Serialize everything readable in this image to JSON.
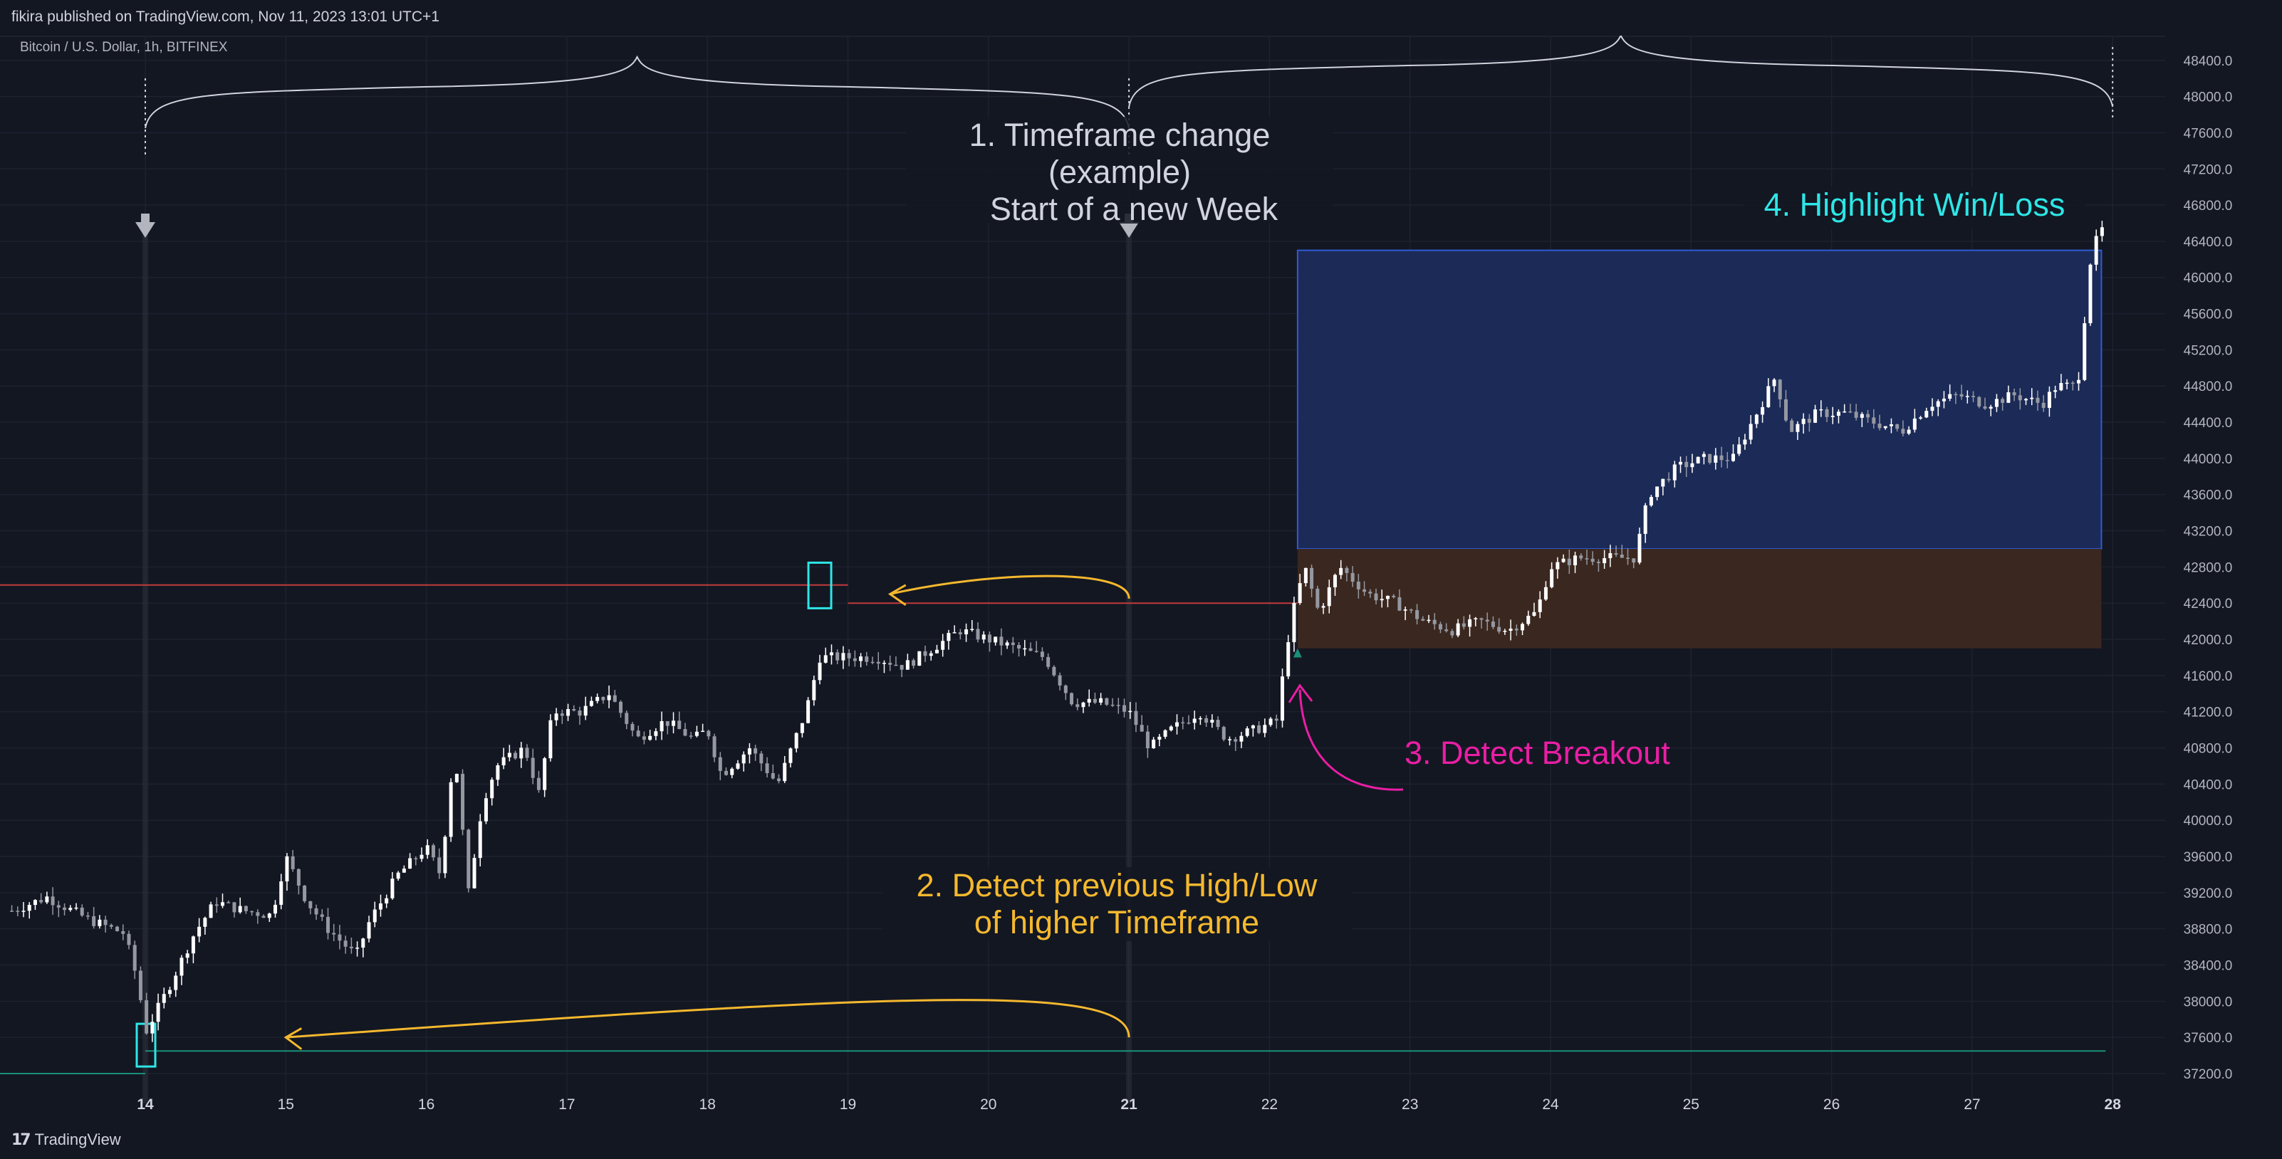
{
  "header": {
    "published": "fikira published on TradingView.com, Nov 11, 2023 13:01 UTC+1",
    "symbol": "Bitcoin / U.S. Dollar, 1h, BITFINEX"
  },
  "footer": {
    "brand_mark": "17",
    "brand": "TradingView"
  },
  "colors": {
    "background": "#131722",
    "grid": "#1e2230",
    "candle_up": "#ffffff",
    "candle_down": "#9598a1",
    "annotation_white": "#d1d4dc",
    "annotation_yellow": "#f5b82e",
    "annotation_magenta": "#e91ea4",
    "annotation_cyan": "#2ee6e6",
    "resistance_line": "#c23b3b",
    "support_line": "#1a8f7a",
    "win_box": "#1b2a56",
    "loss_box": "#3a271f"
  },
  "chart_data": {
    "type": "candlestick",
    "title": "",
    "xlabel": "",
    "ylabel": "",
    "ylim": [
      36800,
      48800
    ],
    "y_ticks": [
      37200,
      37600,
      38000,
      38400,
      38800,
      39200,
      39600,
      40000,
      40400,
      40800,
      41200,
      41600,
      42000,
      42400,
      42800,
      43200,
      43600,
      44000,
      44400,
      44800,
      45200,
      45600,
      46000,
      46400,
      46800,
      47200,
      47600,
      48000,
      48400
    ],
    "y_tick_labels": [
      "37200.0",
      "37600.0",
      "38000.0",
      "38400.0",
      "38800.0",
      "39200.0",
      "39600.0",
      "40000.0",
      "40400.0",
      "40800.0",
      "41200.0",
      "41600.0",
      "42000.0",
      "42400.0",
      "42800.0",
      "43200.0",
      "43600.0",
      "44000.0",
      "44400.0",
      "44800.0",
      "45200.0",
      "45600.0",
      "46000.0",
      "46400.0",
      "46800.0",
      "47200.0",
      "47600.0",
      "48000.0",
      "48400.0"
    ],
    "x_days": [
      14,
      15,
      16,
      17,
      18,
      19,
      20,
      21,
      22,
      23,
      24,
      25,
      26,
      27,
      28
    ],
    "x_tick_labels": [
      "14",
      "15",
      "16",
      "17",
      "18",
      "19",
      "20",
      "21",
      "22",
      "23",
      "24",
      "25",
      "26",
      "27",
      "28"
    ],
    "bold_x_ticks": [
      "14",
      "21",
      "28"
    ],
    "x_range": [
      13.05,
      28.2
    ],
    "price_path": [
      [
        13.05,
        39000
      ],
      [
        13.3,
        39150
      ],
      [
        13.6,
        38900
      ],
      [
        13.85,
        38750
      ],
      [
        13.95,
        38200
      ],
      [
        14.0,
        37650
      ],
      [
        14.15,
        38100
      ],
      [
        14.35,
        38750
      ],
      [
        14.5,
        39100
      ],
      [
        14.7,
        39000
      ],
      [
        14.9,
        38950
      ],
      [
        15.0,
        39600
      ],
      [
        15.15,
        39100
      ],
      [
        15.3,
        38800
      ],
      [
        15.5,
        38500
      ],
      [
        15.6,
        38900
      ],
      [
        15.8,
        39400
      ],
      [
        16.0,
        39700
      ],
      [
        16.1,
        39400
      ],
      [
        16.2,
        40800
      ],
      [
        16.3,
        39200
      ],
      [
        16.4,
        40200
      ],
      [
        16.5,
        40600
      ],
      [
        16.7,
        40800
      ],
      [
        16.8,
        40300
      ],
      [
        16.9,
        41200
      ],
      [
        17.1,
        41200
      ],
      [
        17.3,
        41400
      ],
      [
        17.5,
        40900
      ],
      [
        17.7,
        41100
      ],
      [
        17.9,
        40900
      ],
      [
        18.0,
        41000
      ],
      [
        18.1,
        40500
      ],
      [
        18.3,
        40800
      ],
      [
        18.5,
        40400
      ],
      [
        18.7,
        41200
      ],
      [
        18.8,
        41800
      ],
      [
        19.0,
        41800
      ],
      [
        19.2,
        41800
      ],
      [
        19.4,
        41700
      ],
      [
        19.6,
        41900
      ],
      [
        19.8,
        42100
      ],
      [
        20.0,
        42000
      ],
      [
        20.2,
        41900
      ],
      [
        20.4,
        41800
      ],
      [
        20.6,
        41300
      ],
      [
        20.8,
        41300
      ],
      [
        21.0,
        41200
      ],
      [
        21.15,
        40800
      ],
      [
        21.3,
        41000
      ],
      [
        21.5,
        41200
      ],
      [
        21.7,
        40900
      ],
      [
        21.9,
        41000
      ],
      [
        22.05,
        41100
      ],
      [
        22.15,
        42200
      ],
      [
        22.25,
        42800
      ],
      [
        22.35,
        42300
      ],
      [
        22.5,
        42800
      ],
      [
        22.7,
        42500
      ],
      [
        22.9,
        42400
      ],
      [
        23.1,
        42200
      ],
      [
        23.3,
        42100
      ],
      [
        23.5,
        42200
      ],
      [
        23.7,
        42100
      ],
      [
        23.9,
        42300
      ],
      [
        24.0,
        42800
      ],
      [
        24.2,
        42900
      ],
      [
        24.4,
        42900
      ],
      [
        24.6,
        42900
      ],
      [
        24.7,
        43600
      ],
      [
        24.9,
        43900
      ],
      [
        25.1,
        44000
      ],
      [
        25.3,
        44000
      ],
      [
        25.5,
        44600
      ],
      [
        25.6,
        44900
      ],
      [
        25.7,
        44300
      ],
      [
        25.9,
        44500
      ],
      [
        26.1,
        44500
      ],
      [
        26.3,
        44400
      ],
      [
        26.5,
        44300
      ],
      [
        26.7,
        44600
      ],
      [
        26.9,
        44700
      ],
      [
        27.1,
        44600
      ],
      [
        27.3,
        44700
      ],
      [
        27.5,
        44600
      ],
      [
        27.6,
        44800
      ],
      [
        27.75,
        44800
      ],
      [
        27.85,
        46300
      ],
      [
        27.95,
        46600
      ]
    ],
    "previous_high": 42600,
    "previous_low": 37200,
    "breakout_price": 42400,
    "trade_entry": 43000,
    "win_target": 46300,
    "loss_stop": 41900,
    "annotations": [
      {
        "text": "1. Timeframe change\n(example)\nStart of a new Week",
        "color": "white"
      },
      {
        "text": "2. Detect previous High/Low\nof higher Timeframe",
        "color": "yellow"
      },
      {
        "text": "3. Detect Breakout",
        "color": "magenta"
      },
      {
        "text": "4. Highlight Win/Loss",
        "color": "cyan"
      }
    ]
  }
}
